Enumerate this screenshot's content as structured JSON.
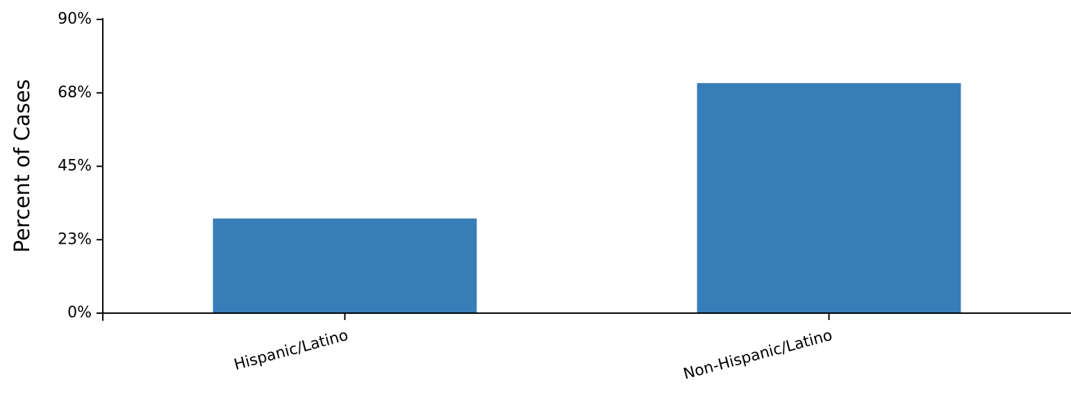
{
  "chart_data": {
    "type": "bar",
    "title": "",
    "xlabel": "",
    "ylabel": "Percent of Cases",
    "categories": [
      "Hispanic/Latino",
      "Non-Hispanic/Latino"
    ],
    "values": [
      29,
      70.5
    ],
    "ylim": [
      0,
      90
    ],
    "y_ticks": [
      "0%",
      "23%",
      "45%",
      "68%",
      "90%"
    ],
    "y_tick_values": [
      0,
      22.5,
      45,
      67.5,
      90
    ],
    "bar_color": "#377eb8",
    "grid": false,
    "legend": "none"
  }
}
